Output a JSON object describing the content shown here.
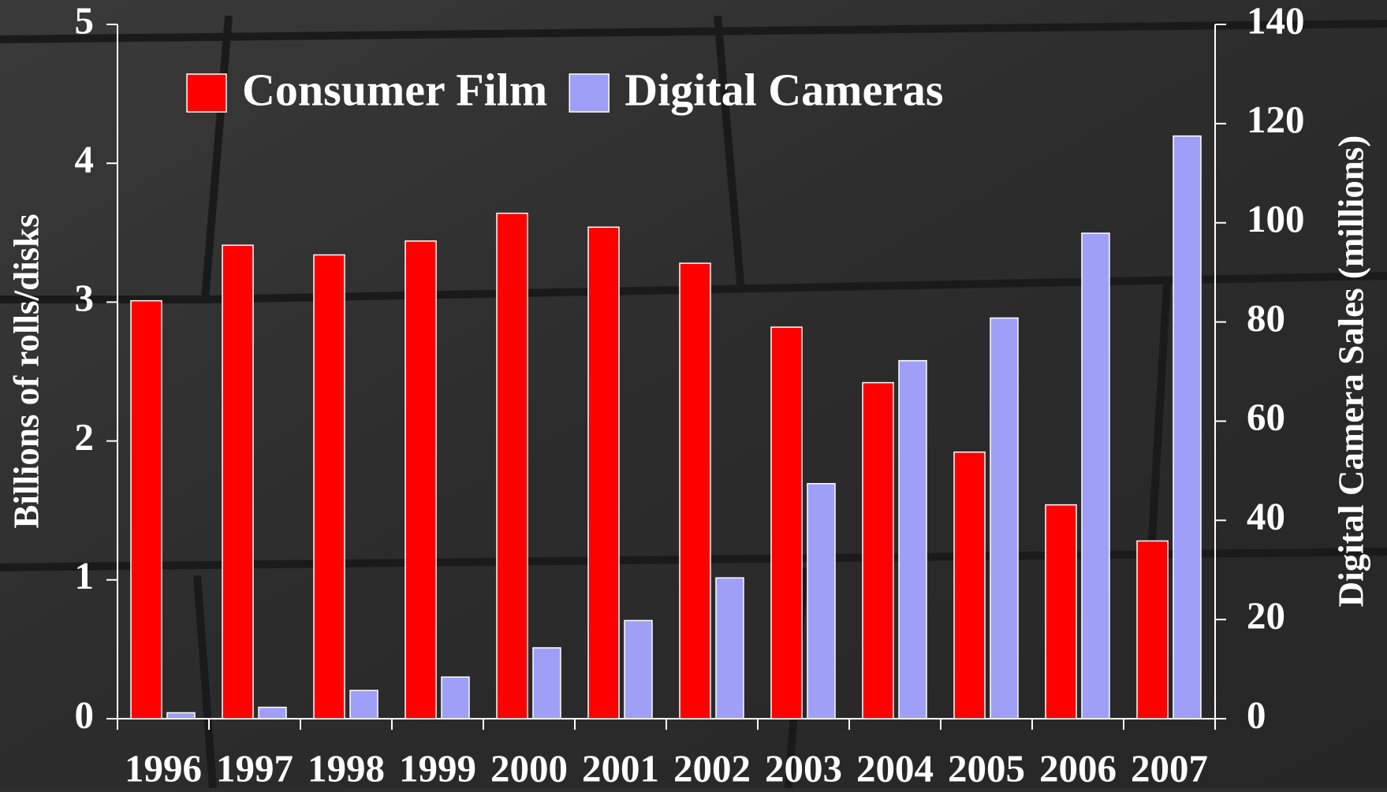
{
  "chart_data": {
    "type": "bar",
    "categories": [
      "1996",
      "1997",
      "1998",
      "1999",
      "2000",
      "2001",
      "2002",
      "2003",
      "2004",
      "2005",
      "2006",
      "2007"
    ],
    "series": [
      {
        "name": "Consumer Film",
        "color": "#ff0000",
        "values": [
          3.01,
          3.41,
          3.34,
          3.44,
          3.64,
          3.54,
          3.28,
          2.82,
          2.42,
          1.92,
          1.54,
          1.28
        ]
      },
      {
        "name": "Digital Cameras",
        "color": "#9f9ff8",
        "axis": "y2",
        "values": [
          1.2,
          2.3,
          5.7,
          8.4,
          14.3,
          19.8,
          28.4,
          47.4,
          72.2,
          80.8,
          97.9,
          117.5
        ]
      }
    ],
    "y_label": "Billions of rolls/disks",
    "y2_label": "Digital Camera Sales (millions)",
    "ylim": [
      0,
      5
    ],
    "yticks": [
      0,
      1,
      2,
      3,
      4,
      5
    ],
    "y2lim": [
      0,
      140
    ],
    "y2ticks": [
      0,
      20,
      40,
      60,
      80,
      100,
      120,
      140
    ],
    "legend": "top-left"
  }
}
